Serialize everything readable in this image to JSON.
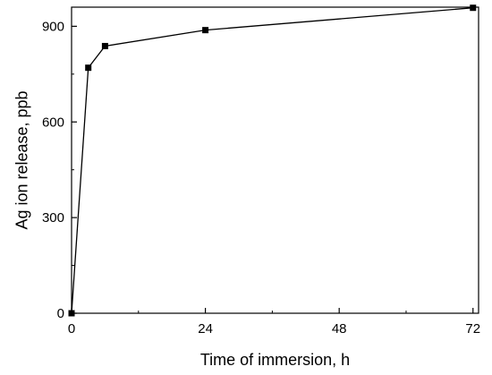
{
  "chart_data": {
    "type": "line",
    "title": "",
    "xlabel": "Time of immersion, h",
    "ylabel": "Ag ion release, ppb",
    "xlim": [
      0,
      73
    ],
    "ylim": [
      0,
      960
    ],
    "xticks": [
      0,
      24,
      48,
      72
    ],
    "yticks": [
      0,
      300,
      600,
      900
    ],
    "xtick_labels": [
      "0",
      "24",
      "48",
      "72"
    ],
    "ytick_labels": [
      "0",
      "300",
      "600",
      "900"
    ],
    "grid": false,
    "legend": "none",
    "series": [
      {
        "marker": "square",
        "color": "#000000",
        "x": [
          0,
          3,
          6,
          24,
          72
        ],
        "y": [
          0,
          770,
          838,
          888,
          958
        ]
      }
    ]
  }
}
